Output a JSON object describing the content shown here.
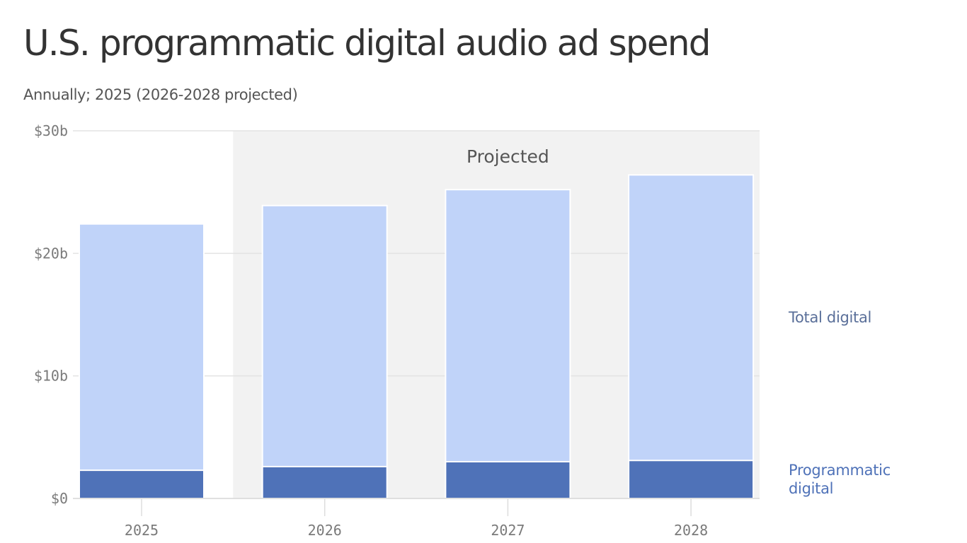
{
  "chart_data": {
    "type": "bar",
    "title": "U.S. programmatic digital audio ad spend",
    "subtitle": "Annually; 2025 (2026-2028 projected)",
    "categories": [
      "2025",
      "2026",
      "2027",
      "2028"
    ],
    "series": [
      {
        "name": "Programmatic digital",
        "values": [
          2.3,
          2.6,
          3.0,
          3.1
        ],
        "color": "#4f72b8"
      },
      {
        "name": "Total digital",
        "values": [
          22.4,
          23.9,
          25.2,
          26.4
        ],
        "color": "#c0d3f9"
      }
    ],
    "stacking": "overlay",
    "projected_band": {
      "label": "Projected",
      "categories": [
        "2026",
        "2027",
        "2028"
      ],
      "color": "#f2f2f2"
    },
    "ylim": [
      0,
      30
    ],
    "yticks": [
      0,
      10,
      20,
      30
    ],
    "ytick_labels": [
      "$0",
      "$10b",
      "$20b",
      "$30b"
    ],
    "xlabel": "",
    "ylabel": "",
    "grid": true,
    "legend": {
      "placement": "right",
      "style": "direct-labels"
    }
  },
  "colors": {
    "programmatic": "#4f72b8",
    "total": "#c0d3f9",
    "total_label": "#5a6f99",
    "programmatic_label": "#4f72b8",
    "projected_bg": "#f2f2f2",
    "grid": "#e3e3e3"
  }
}
